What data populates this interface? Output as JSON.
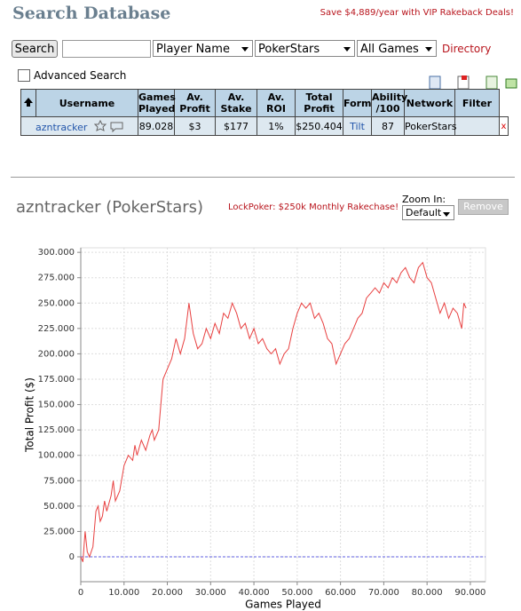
{
  "header": {
    "title": "Search Database",
    "promo": "Save $4,889/year with VIP Rakeback Deals!"
  },
  "search": {
    "button": "Search",
    "player_field": "Player Name",
    "network": "PokerStars",
    "games": "All Games",
    "directory": "Directory",
    "advanced": "Advanced Search"
  },
  "table": {
    "columns": [
      "Username",
      "Games Played",
      "Av. Profit",
      "Av. Stake",
      "Av. ROI",
      "Total Profit",
      "Form",
      "Ability /100",
      "Network",
      "Filter"
    ],
    "rows": [
      [
        "azntracker",
        "89.028",
        "$3",
        "$177",
        "1%",
        "$250.404",
        "Tilt",
        "87",
        "PokerStars",
        "",
        "x"
      ]
    ]
  },
  "profile": {
    "name": "azntracker (PokerStars)",
    "promo": "LockPoker: $250k Monthly Rakechase!",
    "zoom_label": "Zoom In:",
    "zoom_value": "Default",
    "remove": "Remove"
  },
  "chart_data": {
    "type": "line",
    "xlabel": "Games Played",
    "ylabel": "Total Profit ($)",
    "color": "#e84040",
    "grid": true,
    "zero_line": true,
    "xlim": [
      0,
      93500
    ],
    "ylim": [
      -24500,
      304500
    ],
    "xticks": [
      0,
      {
        "value": 10000,
        "label": "10.000"
      },
      {
        "value": 20000,
        "label": "20.000"
      },
      {
        "value": 30000,
        "label": "30.000"
      },
      {
        "value": 40000,
        "label": "40.000"
      },
      {
        "value": 50000,
        "label": "50.000"
      },
      {
        "value": 60000,
        "label": "60.000"
      },
      {
        "value": 70000,
        "label": "70.000"
      },
      {
        "value": 80000,
        "label": "80.000"
      },
      {
        "value": 90000,
        "label": "90.000"
      }
    ],
    "yticks": [
      0,
      {
        "value": 25000,
        "label": "25.000"
      },
      {
        "value": 50000,
        "label": "50.000"
      },
      {
        "value": 75000,
        "label": "75.000"
      },
      {
        "value": 100000,
        "label": "100.000"
      },
      {
        "value": 125000,
        "label": "125.000"
      },
      {
        "value": 150000,
        "label": "150.000"
      },
      {
        "value": 175000,
        "label": "175.000"
      },
      {
        "value": 200000,
        "label": "200.000"
      },
      {
        "value": 225000,
        "label": "225.000"
      },
      {
        "value": 250000,
        "label": "250.000"
      },
      {
        "value": 275000,
        "label": "275.000"
      },
      {
        "value": 300000,
        "label": "300.000"
      }
    ],
    "x": [
      0,
      500,
      1000,
      1500,
      2000,
      2800,
      3500,
      4000,
      4500,
      5000,
      5500,
      6000,
      7000,
      7500,
      8000,
      9000,
      10000,
      11000,
      12000,
      12500,
      13000,
      14000,
      15000,
      16000,
      16500,
      17000,
      18000,
      18500,
      19000,
      20000,
      21000,
      22000,
      23000,
      24000,
      25000,
      26000,
      27000,
      28000,
      29000,
      30000,
      31000,
      32000,
      33000,
      34000,
      35000,
      36000,
      37000,
      38000,
      39000,
      40000,
      41000,
      42000,
      43000,
      44000,
      45000,
      46000,
      47000,
      48000,
      49000,
      50000,
      51000,
      52000,
      53000,
      54000,
      55000,
      56000,
      57000,
      58000,
      59000,
      60000,
      61000,
      62000,
      63000,
      64000,
      65000,
      66000,
      67000,
      68000,
      69000,
      70000,
      71000,
      72000,
      73000,
      74000,
      75000,
      76000,
      77000,
      78000,
      79000,
      80000,
      81000,
      82000,
      83000,
      84000,
      85000,
      86000,
      87000,
      88000,
      88500,
      89000
    ],
    "values": [
      0,
      -5000,
      25000,
      5000,
      0,
      10000,
      45000,
      50000,
      35000,
      40000,
      55000,
      45000,
      60000,
      75000,
      55000,
      65000,
      90000,
      100000,
      95000,
      110000,
      100000,
      115000,
      105000,
      120000,
      125000,
      115000,
      125000,
      150000,
      175000,
      185000,
      195000,
      215000,
      200000,
      215000,
      250000,
      220000,
      205000,
      210000,
      225000,
      215000,
      230000,
      220000,
      240000,
      235000,
      250000,
      240000,
      225000,
      230000,
      215000,
      225000,
      210000,
      215000,
      205000,
      200000,
      205000,
      190000,
      200000,
      205000,
      225000,
      240000,
      250000,
      245000,
      250000,
      235000,
      240000,
      230000,
      215000,
      210000,
      190000,
      200000,
      210000,
      215000,
      225000,
      235000,
      240000,
      255000,
      260000,
      265000,
      260000,
      270000,
      265000,
      275000,
      270000,
      280000,
      285000,
      275000,
      270000,
      285000,
      290000,
      275000,
      270000,
      255000,
      240000,
      250000,
      235000,
      245000,
      240000,
      225000,
      250000,
      245000
    ]
  }
}
